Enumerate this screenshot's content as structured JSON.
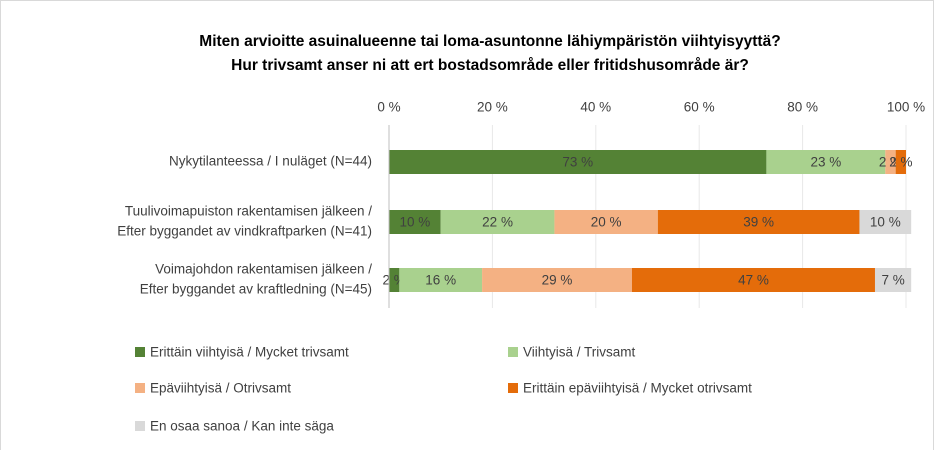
{
  "chart_data": {
    "type": "stacked_bar_horizontal",
    "title": [
      "Miten arvioitte asuinalueenne tai loma-asuntonne lähiympäristön viihtyisyyttä?",
      "Hur trivsamt anser ni att ert bostadsområde eller fritidshusområde är?"
    ],
    "categories": [
      [
        "Nykytilanteessa / I nuläget (N=44)"
      ],
      [
        "Tuulivoimapuiston rakentamisen jälkeen /",
        "Efter byggandet av vindkraftparken (N=41)"
      ],
      [
        "Voimajohdon rakentamisen jälkeen /",
        "Efter byggandet av kraftledning (N=45)"
      ]
    ],
    "series": [
      {
        "name": "Erittäin viihtyisä  / Mycket trivsamt",
        "color": "#548235",
        "values": [
          73,
          10,
          2
        ],
        "value_labels": [
          "73 %",
          "10 %",
          "2 %"
        ]
      },
      {
        "name": "Viihtyisä / Trivsamt",
        "color": "#a9d18e",
        "values": [
          23,
          22,
          16
        ],
        "value_labels": [
          "23 %",
          "22 %",
          "16 %"
        ]
      },
      {
        "name": "Epäviihtyisä / Otrivsamt",
        "color": "#f4b183",
        "values": [
          2,
          20,
          29
        ],
        "value_labels": [
          "2 %",
          "20 %",
          "29 %"
        ]
      },
      {
        "name": "Erittäin epäviihtyisä / Mycket otrivsamt",
        "color": "#e46c0a",
        "values": [
          2,
          39,
          47
        ],
        "value_labels": [
          "2 %",
          "39 %",
          "47 %"
        ]
      },
      {
        "name": "En osaa sanoa / Kan inte säga",
        "color": "#d9d9d9",
        "values": [
          0,
          10,
          7
        ],
        "value_labels": [
          null,
          "10 %",
          "7 %"
        ]
      }
    ],
    "xlim": [
      0,
      100
    ],
    "xticks": [
      {
        "value": 0,
        "label": "0 %"
      },
      {
        "value": 20,
        "label": "20 %"
      },
      {
        "value": 40,
        "label": "40 %"
      },
      {
        "value": 60,
        "label": "60 %"
      },
      {
        "value": 80,
        "label": "80 %"
      },
      {
        "value": 100,
        "label": "100 %"
      }
    ],
    "grid": true
  }
}
